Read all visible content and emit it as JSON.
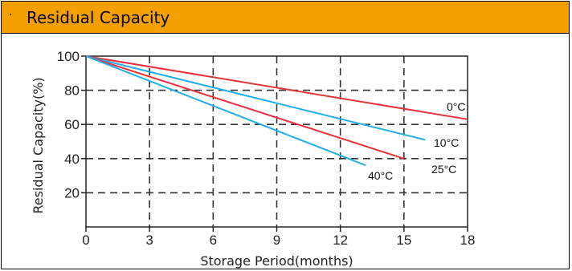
{
  "header": {
    "bullet": "·",
    "title": "Residual Capacity"
  },
  "chart_data": {
    "type": "line",
    "title": "",
    "xlabel": "Storage Period(months)",
    "ylabel": "Residual Capacity(%)",
    "xlim": [
      0,
      18
    ],
    "ylim": [
      0,
      100
    ],
    "x_ticks": [
      "0",
      "3",
      "6",
      "9",
      "12",
      "15",
      "18"
    ],
    "y_ticks": [
      "20",
      "40",
      "60",
      "80",
      "100"
    ],
    "grid": true,
    "series": [
      {
        "name": "0°C",
        "color": "#e8303a",
        "x": [
          0,
          18
        ],
        "y": [
          100,
          63
        ]
      },
      {
        "name": "10°C",
        "color": "#22aee6",
        "x": [
          0,
          16
        ],
        "y": [
          100,
          51
        ]
      },
      {
        "name": "25°C",
        "color": "#e8303a",
        "x": [
          0,
          15
        ],
        "y": [
          100,
          40
        ]
      },
      {
        "name": "40°C",
        "color": "#22aee6",
        "x": [
          0,
          13.2
        ],
        "y": [
          100,
          36
        ]
      }
    ]
  }
}
